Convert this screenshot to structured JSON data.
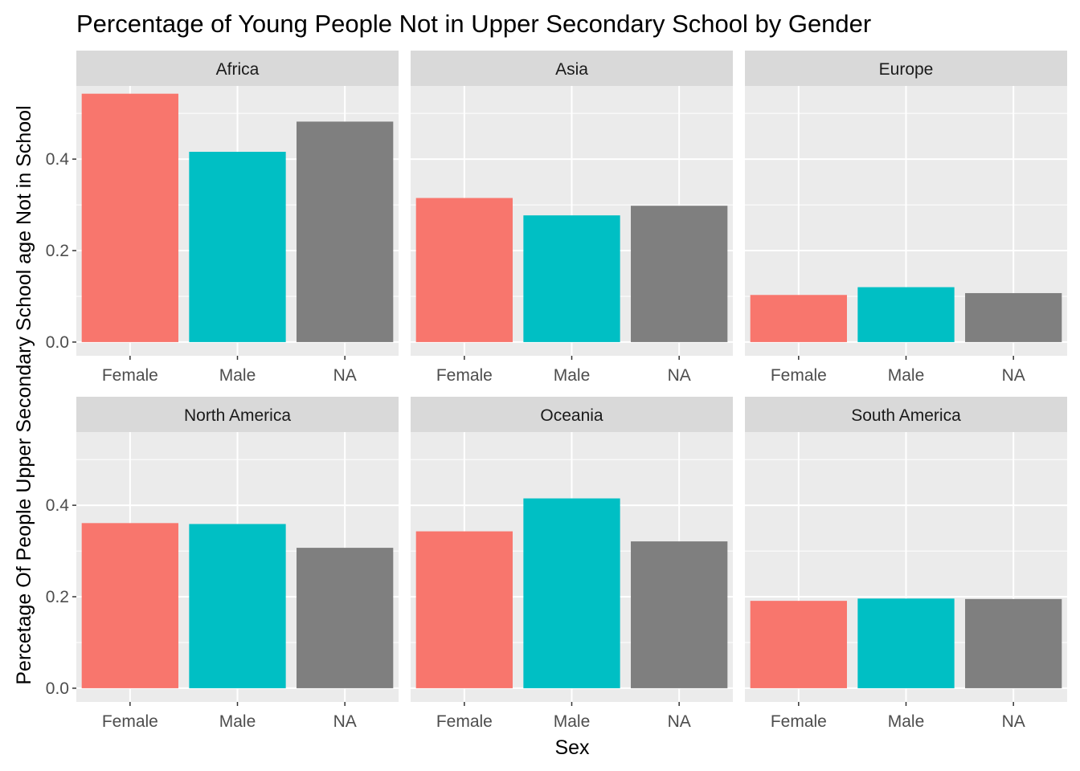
{
  "chart_data": {
    "type": "bar",
    "title": "Percentage of Young People Not in Upper Secondary School by Gender",
    "xlabel": "Sex",
    "ylabel": "Percetage Of People Upper Secondary School age Not in School",
    "categories": [
      "Female",
      "Male",
      "NA"
    ],
    "ylim": [
      -0.03,
      0.56
    ],
    "yticks": [
      0.0,
      0.2,
      0.4
    ],
    "ytick_labels": [
      "0.0",
      "0.2",
      "0.4"
    ],
    "grid": true,
    "legend": "none",
    "colors": {
      "Female": "#F8766D",
      "Male": "#00BFC4",
      "NA": "#7F7F7F"
    },
    "panel_background": "#EBEBEB",
    "strip_background": "#D9D9D9",
    "panels": [
      {
        "name": "Africa",
        "values": [
          0.543,
          0.416,
          0.482
        ]
      },
      {
        "name": "Asia",
        "values": [
          0.315,
          0.277,
          0.298
        ]
      },
      {
        "name": "Europe",
        "values": [
          0.103,
          0.12,
          0.107
        ]
      },
      {
        "name": "North America",
        "values": [
          0.361,
          0.359,
          0.307
        ]
      },
      {
        "name": "Oceania",
        "values": [
          0.343,
          0.415,
          0.321
        ]
      },
      {
        "name": "South America",
        "values": [
          0.191,
          0.196,
          0.195
        ]
      }
    ]
  }
}
